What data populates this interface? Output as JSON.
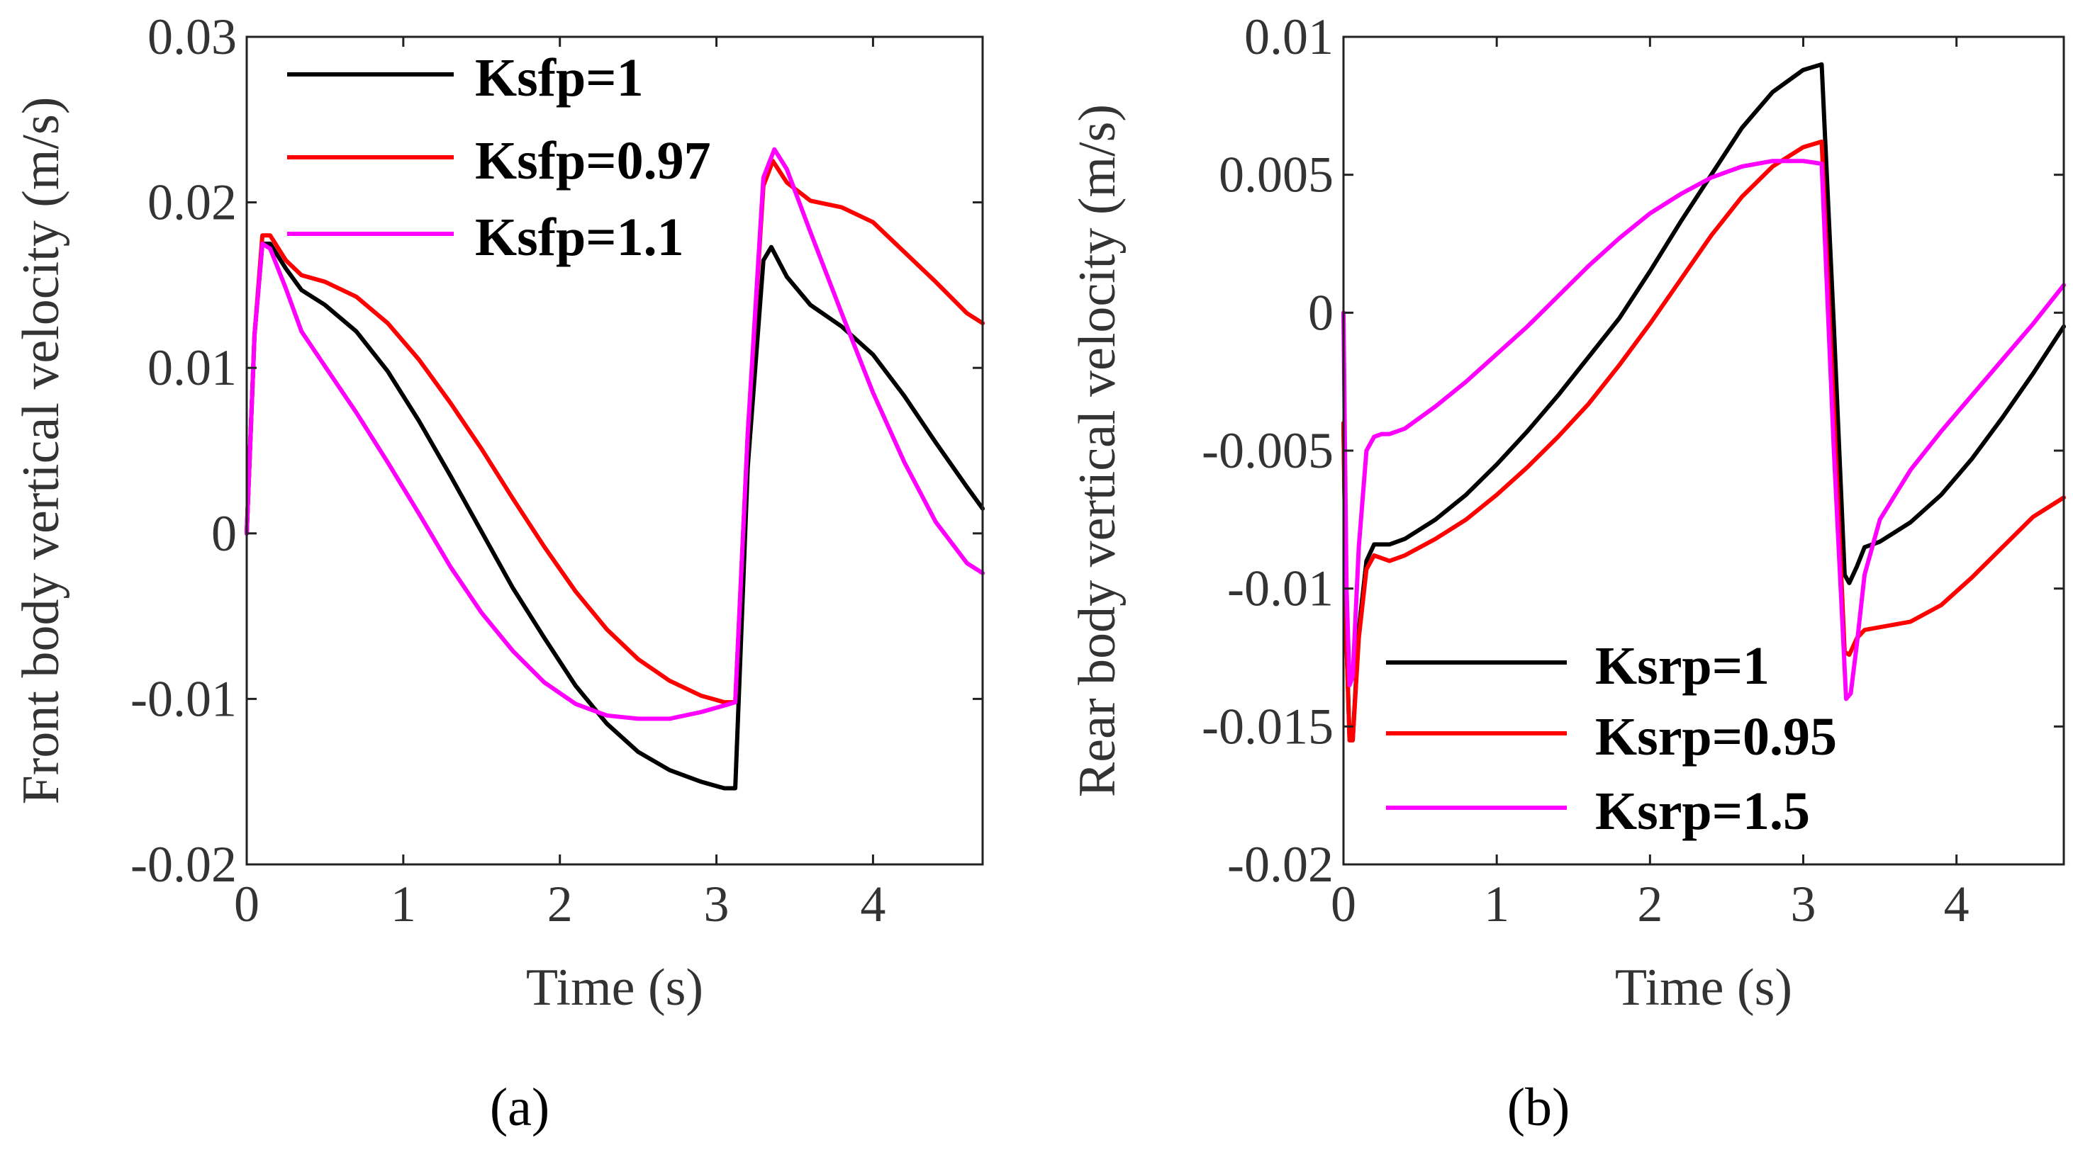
{
  "chart_data": [
    {
      "type": "line",
      "panel_label": "(a)",
      "xlabel": "Time (s)",
      "ylabel": "Front body vertical  velocity (m/s)",
      "xlim": [
        0,
        4.7
      ],
      "ylim": [
        -0.02,
        0.03
      ],
      "xticks": [
        0,
        1,
        2,
        3,
        4
      ],
      "xtick_labels": [
        "0",
        "1",
        "2",
        "3",
        "4"
      ],
      "yticks": [
        -0.02,
        -0.01,
        0,
        0.01,
        0.02,
        0.03
      ],
      "ytick_labels": [
        "-0.02",
        "-0.01",
        "0",
        "0.01",
        "0.02",
        "0.03"
      ],
      "legend_position": "top-right",
      "series": [
        {
          "name": "Ksfp=1",
          "color": "#000000",
          "x": [
            0,
            0.05,
            0.1,
            0.15,
            0.25,
            0.35,
            0.5,
            0.7,
            0.9,
            1.1,
            1.3,
            1.5,
            1.7,
            1.9,
            2.1,
            2.3,
            2.5,
            2.7,
            2.9,
            3.05,
            3.12,
            3.2,
            3.3,
            3.35,
            3.45,
            3.6,
            3.8,
            4.0,
            4.2,
            4.4,
            4.6,
            4.7
          ],
          "y": [
            0,
            0.012,
            0.0175,
            0.0175,
            0.016,
            0.0147,
            0.0138,
            0.0122,
            0.0098,
            0.0068,
            0.0035,
            0.0001,
            -0.0033,
            -0.0063,
            -0.0092,
            -0.0115,
            -0.0132,
            -0.0143,
            -0.015,
            -0.0154,
            -0.0154,
            0.004,
            0.0165,
            0.0173,
            0.0155,
            0.0138,
            0.0125,
            0.0108,
            0.0083,
            0.0055,
            0.0028,
            0.0015
          ]
        },
        {
          "name": "Ksfp=0.97",
          "color": "#ff0000",
          "x": [
            0,
            0.05,
            0.1,
            0.15,
            0.25,
            0.35,
            0.5,
            0.7,
            0.9,
            1.1,
            1.3,
            1.5,
            1.7,
            1.9,
            2.1,
            2.3,
            2.5,
            2.7,
            2.9,
            3.05,
            3.12,
            3.2,
            3.3,
            3.36,
            3.45,
            3.6,
            3.8,
            4.0,
            4.2,
            4.4,
            4.6,
            4.7
          ],
          "y": [
            0,
            0.012,
            0.018,
            0.018,
            0.0165,
            0.0156,
            0.0152,
            0.0143,
            0.0127,
            0.0105,
            0.0079,
            0.0051,
            0.0021,
            -0.0008,
            -0.0035,
            -0.0058,
            -0.0076,
            -0.0089,
            -0.0098,
            -0.0102,
            -0.0102,
            0.006,
            0.021,
            0.0225,
            0.0212,
            0.0201,
            0.0197,
            0.0188,
            0.017,
            0.0152,
            0.0133,
            0.0127
          ]
        },
        {
          "name": "Ksfp=1.1",
          "color": "#ff00ff",
          "x": [
            0,
            0.05,
            0.1,
            0.15,
            0.25,
            0.35,
            0.5,
            0.7,
            0.9,
            1.1,
            1.3,
            1.5,
            1.7,
            1.9,
            2.1,
            2.3,
            2.5,
            2.7,
            2.9,
            3.05,
            3.12,
            3.2,
            3.3,
            3.37,
            3.45,
            3.6,
            3.8,
            4.0,
            4.2,
            4.4,
            4.6,
            4.7
          ],
          "y": [
            0,
            0.012,
            0.0175,
            0.0172,
            0.0148,
            0.0122,
            0.0101,
            0.0073,
            0.0043,
            0.0012,
            -0.002,
            -0.0048,
            -0.0071,
            -0.009,
            -0.0103,
            -0.011,
            -0.0112,
            -0.0112,
            -0.0108,
            -0.0104,
            -0.0102,
            0.006,
            0.0215,
            0.0232,
            0.022,
            0.0182,
            0.0133,
            0.0085,
            0.0043,
            0.0007,
            -0.0018,
            -0.0024
          ]
        }
      ]
    },
    {
      "type": "line",
      "panel_label": "(b)",
      "xlabel": "Time (s)",
      "ylabel": "Rear body vertical  velocity (m/s)",
      "xlim": [
        0,
        4.7
      ],
      "ylim": [
        -0.02,
        0.01
      ],
      "xticks": [
        0,
        1,
        2,
        3,
        4
      ],
      "xtick_labels": [
        "0",
        "1",
        "2",
        "3",
        "4"
      ],
      "yticks": [
        -0.02,
        -0.015,
        -0.01,
        -0.005,
        0,
        0.005,
        0.01
      ],
      "ytick_labels": [
        "-0.02",
        "-0.015",
        "-0.01",
        "-0.005",
        "0",
        "0.005",
        "0.01"
      ],
      "legend_position": "bottom-right",
      "series": [
        {
          "name": "Ksrp=1",
          "color": "#000000",
          "x": [
            0,
            0.02,
            0.04,
            0.06,
            0.1,
            0.15,
            0.2,
            0.25,
            0.3,
            0.4,
            0.6,
            0.8,
            1.0,
            1.2,
            1.4,
            1.6,
            1.8,
            2.0,
            2.2,
            2.4,
            2.6,
            2.8,
            3.0,
            3.12,
            3.2,
            3.27,
            3.3,
            3.35,
            3.4,
            3.5,
            3.7,
            3.9,
            4.1,
            4.3,
            4.5,
            4.7
          ],
          "y": [
            -0.004,
            -0.012,
            -0.0155,
            -0.0155,
            -0.0115,
            -0.009,
            -0.0084,
            -0.0084,
            -0.0084,
            -0.0082,
            -0.0075,
            -0.0066,
            -0.0055,
            -0.0043,
            -0.003,
            -0.0016,
            -0.0002,
            0.0015,
            0.0033,
            0.005,
            0.0067,
            0.008,
            0.0088,
            0.009,
            -0.0005,
            -0.0095,
            -0.0098,
            -0.0092,
            -0.0085,
            -0.0083,
            -0.0076,
            -0.0066,
            -0.0053,
            -0.0038,
            -0.0022,
            -0.0005
          ]
        },
        {
          "name": "Ksrp=0.95",
          "color": "#ff0000",
          "x": [
            0,
            0.02,
            0.04,
            0.06,
            0.1,
            0.15,
            0.2,
            0.25,
            0.3,
            0.4,
            0.6,
            0.8,
            1.0,
            1.2,
            1.4,
            1.6,
            1.8,
            2.0,
            2.2,
            2.4,
            2.6,
            2.8,
            3.0,
            3.12,
            3.2,
            3.27,
            3.3,
            3.35,
            3.4,
            3.5,
            3.7,
            3.9,
            4.1,
            4.3,
            4.5,
            4.7
          ],
          "y": [
            -0.004,
            -0.012,
            -0.0155,
            -0.0155,
            -0.0118,
            -0.0093,
            -0.0088,
            -0.0089,
            -0.009,
            -0.0088,
            -0.0082,
            -0.0075,
            -0.0066,
            -0.0056,
            -0.0045,
            -0.0033,
            -0.0019,
            -0.0004,
            0.0012,
            0.0028,
            0.0042,
            0.0053,
            0.006,
            0.0062,
            -0.0035,
            -0.0123,
            -0.0124,
            -0.0118,
            -0.0115,
            -0.0114,
            -0.0112,
            -0.0106,
            -0.0096,
            -0.0085,
            -0.0074,
            -0.0067
          ]
        },
        {
          "name": "Ksrp=1.5",
          "color": "#ff00ff",
          "x": [
            0,
            0.02,
            0.04,
            0.06,
            0.1,
            0.15,
            0.2,
            0.25,
            0.3,
            0.4,
            0.6,
            0.8,
            1.0,
            1.2,
            1.4,
            1.6,
            1.8,
            2.0,
            2.2,
            2.4,
            2.6,
            2.8,
            3.0,
            3.12,
            3.2,
            3.28,
            3.31,
            3.35,
            3.4,
            3.5,
            3.7,
            3.9,
            4.1,
            4.3,
            4.5,
            4.7
          ],
          "y": [
            0,
            -0.01,
            -0.0135,
            -0.0132,
            -0.0085,
            -0.005,
            -0.0045,
            -0.0044,
            -0.0044,
            -0.0042,
            -0.0034,
            -0.0025,
            -0.0015,
            -0.0005,
            0.0006,
            0.0017,
            0.0027,
            0.0036,
            0.0043,
            0.0049,
            0.0053,
            0.0055,
            0.0055,
            0.0054,
            -0.005,
            -0.014,
            -0.0138,
            -0.012,
            -0.0095,
            -0.0075,
            -0.0057,
            -0.0043,
            -0.003,
            -0.0017,
            -0.0004,
            0.001
          ]
        }
      ]
    }
  ]
}
